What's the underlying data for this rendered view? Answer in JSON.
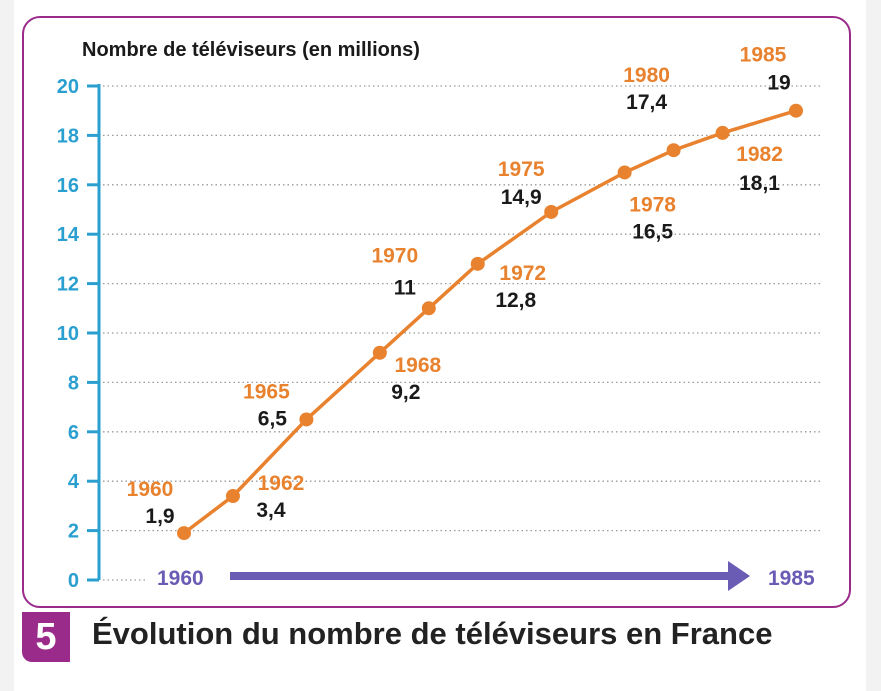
{
  "colors": {
    "frame": "#9a2b8a",
    "axis": "#2a9fd0",
    "line": "#e8822e",
    "year_label": "#e8822e",
    "value_label": "#1a1a1a",
    "arrow": "#6a5bb5"
  },
  "figure": {
    "number": "5",
    "caption": "Évolution du nombre de téléviseurs en France"
  },
  "chart_data": {
    "type": "line",
    "title": "",
    "ylabel": "Nombre de téléviseurs (en millions)",
    "xlabel": "",
    "ylim": [
      0,
      20
    ],
    "yticks": [
      0,
      2,
      4,
      6,
      8,
      10,
      12,
      14,
      16,
      18,
      20
    ],
    "grid": true,
    "x_start_label": "1960",
    "x_end_label": "1985",
    "series": [
      {
        "points": [
          {
            "year": 1960,
            "value": 1.9,
            "year_label": "1960",
            "value_label": "1,9"
          },
          {
            "year": 1962,
            "value": 3.4,
            "year_label": "1962",
            "value_label": "3,4"
          },
          {
            "year": 1965,
            "value": 6.5,
            "year_label": "1965",
            "value_label": "6,5"
          },
          {
            "year": 1968,
            "value": 9.2,
            "year_label": "1968",
            "value_label": "9,2"
          },
          {
            "year": 1970,
            "value": 11,
            "year_label": "1970",
            "value_label": "11"
          },
          {
            "year": 1972,
            "value": 12.8,
            "year_label": "1972",
            "value_label": "12,8"
          },
          {
            "year": 1975,
            "value": 14.9,
            "year_label": "1975",
            "value_label": "14,9"
          },
          {
            "year": 1978,
            "value": 16.5,
            "year_label": "1978",
            "value_label": "16,5"
          },
          {
            "year": 1980,
            "value": 17.4,
            "year_label": "1980",
            "value_label": "17,4"
          },
          {
            "year": 1982,
            "value": 18.1,
            "year_label": "1982",
            "value_label": "18,1"
          },
          {
            "year": 1985,
            "value": 19,
            "year_label": "1985",
            "value_label": "19"
          }
        ]
      }
    ]
  }
}
